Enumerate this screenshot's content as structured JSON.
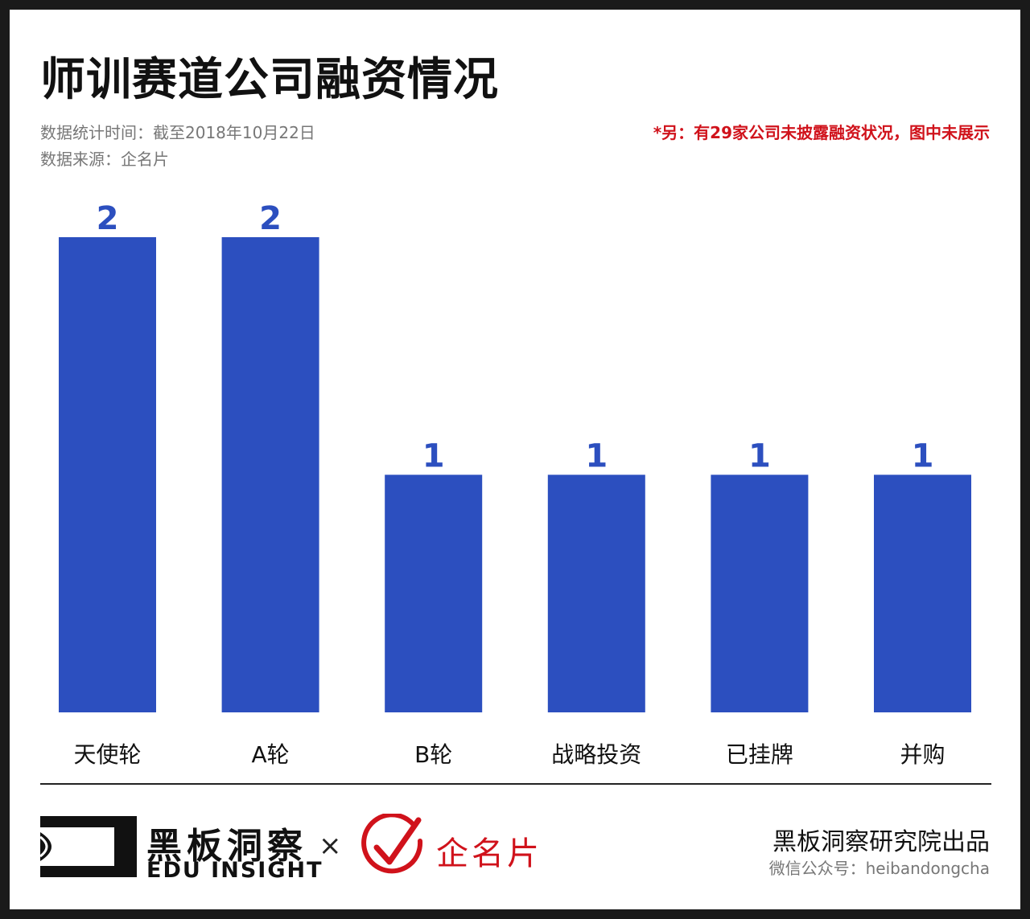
{
  "header": {
    "title": "师训赛道公司融资情况",
    "stat_time": "数据统计时间：截至2018年10月22日",
    "source": "数据来源：企名片",
    "note": "*另：有29家公司未披露融资状况，图中未展示"
  },
  "chart_data": {
    "type": "bar",
    "categories": [
      "天使轮",
      "A轮",
      "B轮",
      "战略投资",
      "已挂牌",
      "并购"
    ],
    "values": [
      2,
      2,
      1,
      1,
      1,
      1
    ],
    "title": "",
    "xlabel": "",
    "ylabel": "",
    "ylim": [
      0,
      2
    ],
    "grid": false,
    "bar_color": "#2c4fbf",
    "label_color": "#2c4fbf"
  },
  "footer": {
    "logo_cn": "黑板洞察",
    "logo_en": "EDU INSIGHT",
    "times_symbol": "×",
    "partner": "企名片",
    "producer": "黑板洞察研究院出品",
    "wechat": "微信公众号：heibandongcha"
  },
  "colors": {
    "accent_red": "#d0121b",
    "bar_blue": "#2c4fbf",
    "text_dark": "#111111",
    "text_gray": "#777777"
  }
}
